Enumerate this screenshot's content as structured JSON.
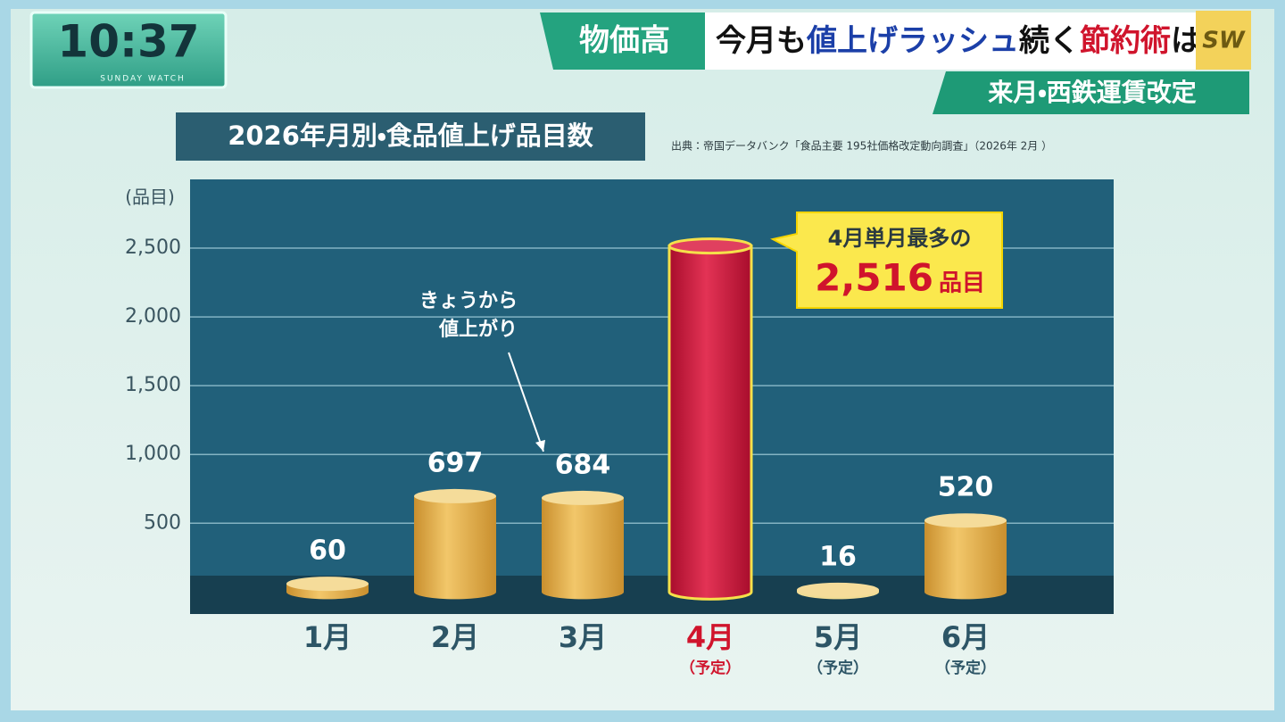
{
  "overlay": {
    "clock": "10:37",
    "program": "SUNDAY WATCH",
    "logo": "SW",
    "tag": "物価高",
    "headline": [
      {
        "text": "今月も",
        "color": "#111111"
      },
      {
        "text": "値上げラッシュ",
        "color": "#1b3fa8"
      },
      {
        "text": "続く",
        "color": "#111111"
      },
      {
        "text": "節約術",
        "color": "#d0142c"
      },
      {
        "text": "は？",
        "color": "#111111"
      }
    ],
    "subheadline": "来月・西鉄運賃改定"
  },
  "chart_data": {
    "type": "bar",
    "title": "2026年月別・食品値上げ品目数",
    "source": "出典：帝国データバンク「食品主要 195社価格改定動向調査」（2026年 2月 ）",
    "y_label": "(品目)",
    "categories": [
      "1月",
      "2月",
      "3月",
      "4月",
      "5月",
      "6月"
    ],
    "category_notes": [
      null,
      null,
      null,
      "（予定）",
      "（予定）",
      "（予定）"
    ],
    "values": [
      60,
      697,
      684,
      2516,
      16,
      520
    ],
    "value_labels": [
      "60",
      "697",
      "684",
      null,
      "16",
      "520"
    ],
    "colors": [
      "#e6b24c",
      "#e6b24c",
      "#e6b24c",
      "#d3173d",
      "#f1dc94",
      "#e6b24c"
    ],
    "label_colors": [
      "#2d5566",
      "#2d5566",
      "#2d5566",
      "#d0142c",
      "#2d5566",
      "#2d5566"
    ],
    "ylim": [
      -160,
      3000
    ],
    "yticks": [
      500,
      {
        "value": 1000,
        "label": "1,000"
      },
      {
        "value": 1500,
        "label": "1,500"
      },
      {
        "value": 2000,
        "label": "2,000"
      },
      {
        "value": 2500,
        "label": "2,500"
      }
    ],
    "grid": true,
    "annotations": [
      {
        "lines": [
          "きょうから",
          "値上がり"
        ],
        "target": 2
      },
      {
        "lines": [
          "4月単月最多の"
        ],
        "value": 2516,
        "value_label": "2,516",
        "unit": "品目",
        "target": 3
      }
    ]
  }
}
